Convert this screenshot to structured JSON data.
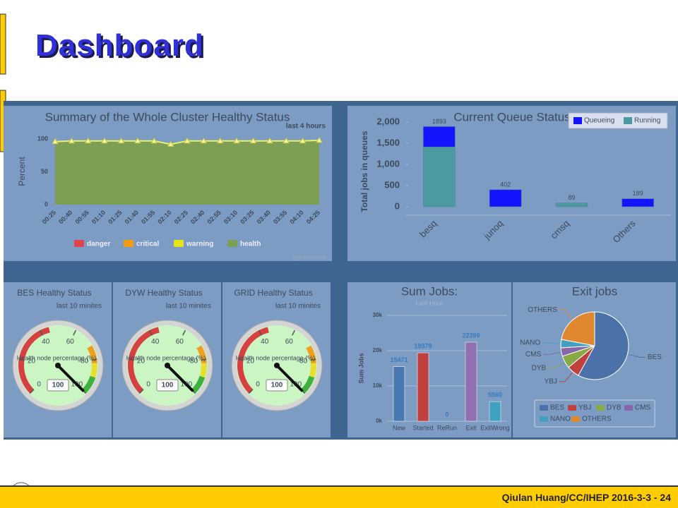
{
  "slide": {
    "title": "Dashboard",
    "footer": "Qiulan Huang/CC/IHEP 2016-3-3 - 24"
  },
  "chart_data": [
    {
      "type": "area",
      "title": "Summary of the Whole Cluster Healthy Status",
      "subtitle": "last 4 hours",
      "y_label": "Percent",
      "categories": [
        "00:25",
        "00:40",
        "00:55",
        "01:10",
        "01:25",
        "01:40",
        "01:55",
        "02:10",
        "02:25",
        "02:40",
        "02:55",
        "03:10",
        "03:25",
        "03:40",
        "03:55",
        "04:10",
        "04:25"
      ],
      "series": [
        {
          "name": "health",
          "color": "#7d9f55",
          "values": [
            96,
            97,
            97,
            97,
            97,
            97,
            97,
            92,
            97,
            97,
            97,
            97,
            97,
            97,
            97,
            97,
            98
          ]
        }
      ],
      "legend": [
        {
          "name": "danger",
          "color": "#e0464b"
        },
        {
          "name": "critical",
          "color": "#f39c12"
        },
        {
          "name": "warning",
          "color": "#e5e51a"
        },
        {
          "name": "health",
          "color": "#7d9f55"
        }
      ],
      "ylim": [
        0,
        100
      ],
      "yticks": [
        0,
        50,
        100
      ],
      "credit": "Highcharts.com"
    },
    {
      "type": "stacked-bar",
      "title": "Current Queue Status",
      "y_label": "Total jobs in queues",
      "categories": [
        "besq",
        "junoq",
        "cmsq",
        "Others"
      ],
      "series": [
        {
          "name": "Queueing",
          "color": "#1414ff",
          "values": [
            480,
            402,
            0,
            189
          ]
        },
        {
          "name": "Running",
          "color": "#4a9a9f",
          "values": [
            1413,
            0,
            89,
            0
          ]
        }
      ],
      "totals": [
        1893,
        402,
        89,
        189
      ],
      "ylim": [
        0,
        2000
      ],
      "yticks": [
        0,
        500,
        {
          "value": 1000,
          "label": "1,000"
        },
        {
          "value": 1500,
          "label": "1,500"
        },
        {
          "value": 2000,
          "label": "2,000"
        }
      ]
    },
    {
      "type": "gauge",
      "title": "BES Healthy Status",
      "subtitle": "last 10 minites",
      "label": "Health node percentage (%)",
      "value": 100,
      "ylim": [
        0,
        100
      ],
      "yticks": [
        0,
        20,
        40,
        60,
        80,
        100
      ],
      "bands": [
        {
          "from": 0,
          "to": 45,
          "color": "#d64040"
        },
        {
          "from": 72,
          "to": 82,
          "color": "#f0a020"
        },
        {
          "from": 82,
          "to": 90,
          "color": "#e8e030"
        },
        {
          "from": 90,
          "to": 100,
          "color": "#40b040"
        }
      ]
    },
    {
      "type": "gauge",
      "title": "DYW Healthy Status",
      "subtitle": "last 10 minites",
      "label": "Health node percentage (%)",
      "value": 100,
      "ylim": [
        0,
        100
      ],
      "yticks": [
        0,
        20,
        40,
        60,
        80,
        100
      ],
      "bands": [
        {
          "from": 0,
          "to": 45,
          "color": "#d64040"
        },
        {
          "from": 72,
          "to": 82,
          "color": "#f0a020"
        },
        {
          "from": 82,
          "to": 90,
          "color": "#e8e030"
        },
        {
          "from": 90,
          "to": 100,
          "color": "#40b040"
        }
      ]
    },
    {
      "type": "gauge",
      "title": "GRID Healthy Status",
      "subtitle": "last 10 minites",
      "label": "Health node percentage (%)",
      "value": 100,
      "ylim": [
        0,
        100
      ],
      "yticks": [
        0,
        20,
        40,
        60,
        80,
        100
      ],
      "bands": [
        {
          "from": 0,
          "to": 45,
          "color": "#d64040"
        },
        {
          "from": 72,
          "to": 82,
          "color": "#f0a020"
        },
        {
          "from": 82,
          "to": 90,
          "color": "#e8e030"
        },
        {
          "from": 90,
          "to": 100,
          "color": "#40b040"
        }
      ]
    },
    {
      "type": "bar",
      "title": "Sum Jobs:",
      "subtitle": "Last Hour",
      "y_label": "Sum Jobs",
      "categories": [
        "New",
        "Started",
        "ReRun",
        "Exit",
        "ExitWrong"
      ],
      "values": [
        15471,
        19379,
        0,
        22399,
        5560
      ],
      "colors": [
        "#4a78b0",
        "#c04040",
        "#888888",
        "#9070b0",
        "#40a0c0"
      ],
      "ylim": [
        0,
        30000
      ],
      "yticks": [
        {
          "value": 0,
          "label": "0k"
        },
        {
          "value": 10000,
          "label": "10k"
        },
        {
          "value": 20000,
          "label": "20k"
        },
        {
          "value": 30000,
          "label": "30k"
        }
      ]
    },
    {
      "type": "pie",
      "title": "Exit jobs",
      "categories": [
        "BES",
        "YBJ",
        "DYB",
        "CMS",
        "NANO",
        "OTHERS"
      ],
      "values": [
        58,
        6,
        6,
        4,
        4,
        22
      ],
      "colors": [
        "#4a72a8",
        "#c04040",
        "#88aa44",
        "#8866aa",
        "#44a0c0",
        "#e08830"
      ]
    }
  ]
}
